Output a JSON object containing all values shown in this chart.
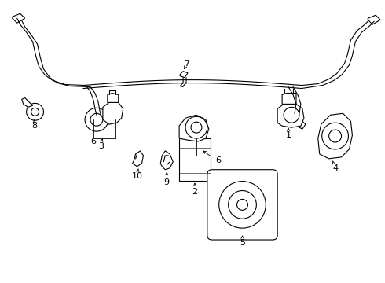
{
  "bg_color": "#ffffff",
  "line_color": "#000000",
  "lw": 0.8,
  "fig_width": 4.9,
  "fig_height": 3.6,
  "dpi": 100
}
